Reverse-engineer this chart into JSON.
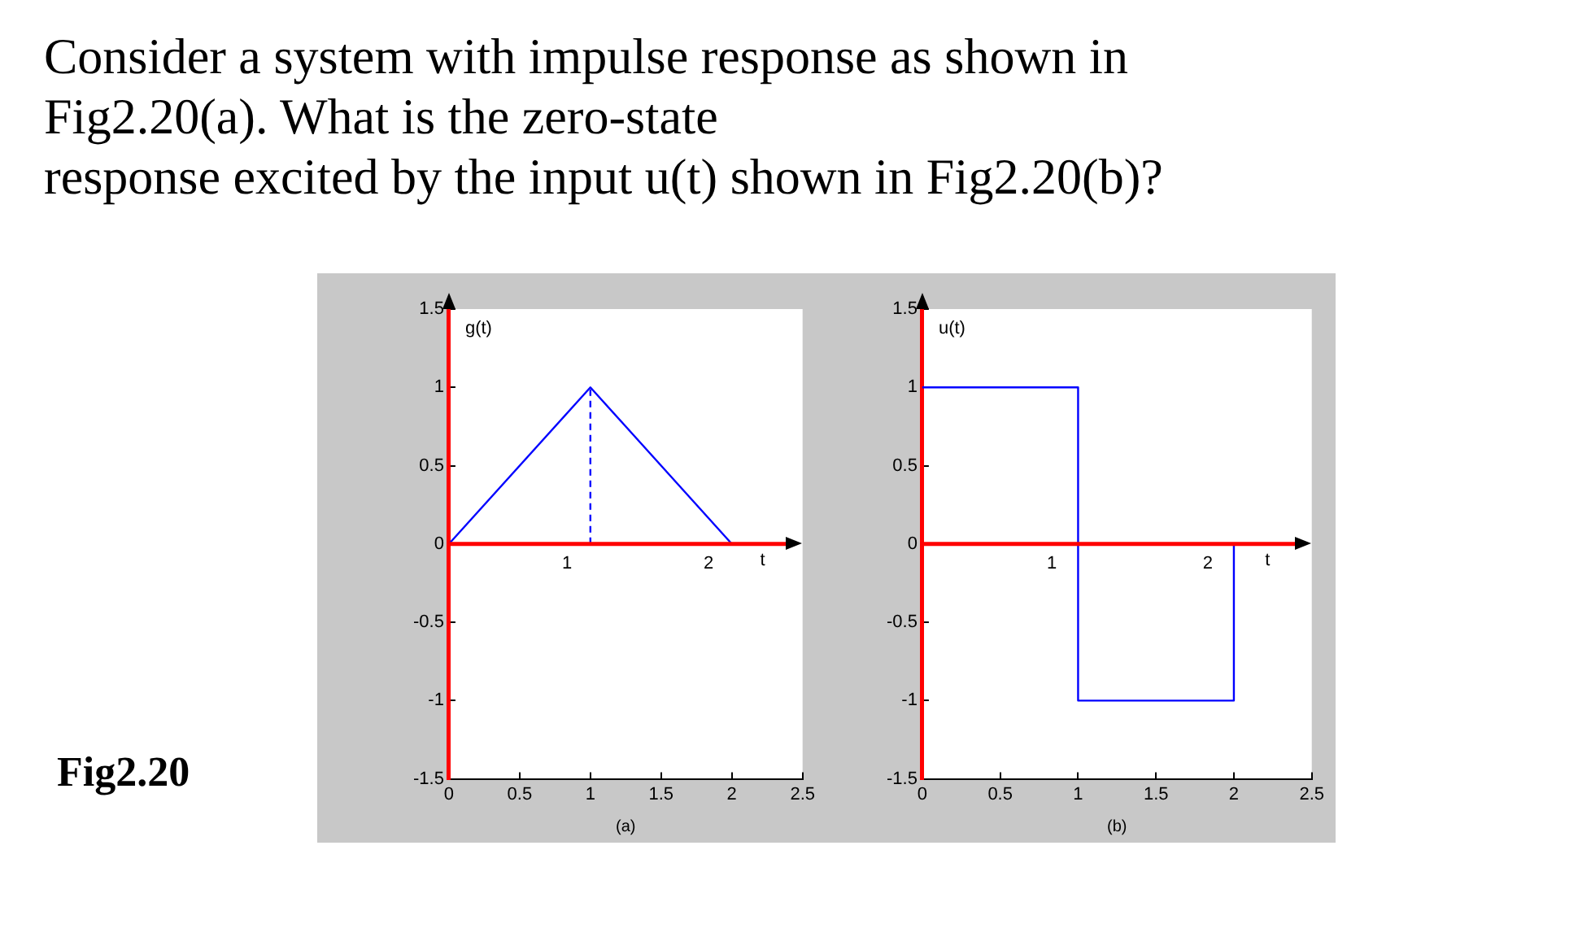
{
  "chart_data": [
    {
      "type": "line",
      "title": "Consider a system with impulse response as shown in\nFig2.20(a). What is the zero-state\nresponse excited by the input u(t) shown in Fig2.20(b)?",
      "xlabel": "(a)",
      "xlim": [
        0,
        2.5
      ],
      "xticks": [
        0,
        0.5,
        1,
        1.5,
        2,
        2.5
      ],
      "ylim": [
        -1.5,
        1.5
      ],
      "yticks": [
        -1.5,
        -1,
        -0.5,
        0,
        0.5,
        1,
        1.5
      ],
      "grid": false,
      "legend": false,
      "marker": "none",
      "series": [
        {
          "color": "#0000ff",
          "x": [
            0,
            1,
            2
          ],
          "values": [
            0,
            1,
            0
          ]
        },
        {
          "color": "#0000ff",
          "x": [
            1,
            1
          ],
          "values": [
            0,
            1
          ],
          "line_style": "dashed"
        }
      ],
      "ref_lines": [
        {
          "axis": "y",
          "value": 0,
          "color": "#ff0000"
        }
      ],
      "annotations": [
        "Fig2.20",
        "g(t)",
        "1",
        "2",
        "t"
      ]
    },
    {
      "type": "line",
      "xlabel": "(b)",
      "xlim": [
        0,
        2.5
      ],
      "xticks": [
        0,
        0.5,
        1,
        1.5,
        2,
        2.5
      ],
      "ylim": [
        -1.5,
        1.5
      ],
      "yticks": [
        -1.5,
        -1,
        -0.5,
        0,
        0.5,
        1,
        1.5
      ],
      "grid": false,
      "legend": false,
      "marker": "none",
      "series": [
        {
          "color": "#0000ff",
          "x": [
            0,
            1,
            1,
            2,
            2
          ],
          "values": [
            1,
            1,
            -1,
            -1,
            0
          ]
        }
      ],
      "ref_lines": [
        {
          "axis": "y",
          "value": 0,
          "color": "#ff0000"
        }
      ],
      "annotations": [
        "u(t)",
        "1",
        "2",
        "t"
      ]
    }
  ]
}
